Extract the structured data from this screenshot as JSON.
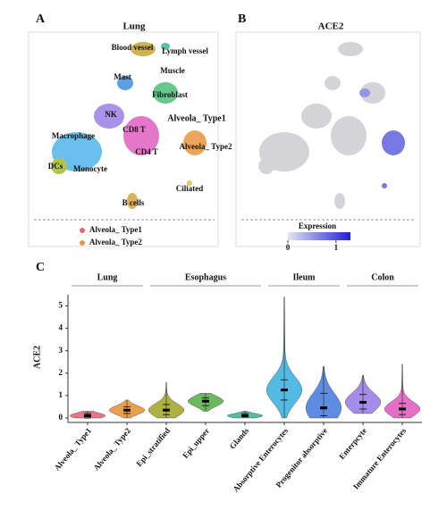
{
  "panel_a": {
    "letter": "A",
    "title": "Lung",
    "clusters": [
      "Blood vessel",
      "Lymph vessel",
      "Muscle",
      "Mast",
      "Fibroblast",
      "NK",
      "CD8 T",
      "Alveola_ Type1",
      "Macrophage",
      "Alveola_ Type2",
      "CD4 T",
      "DCs",
      "Monocyte",
      "Ciliated",
      "B cells"
    ],
    "legend": [
      {
        "name": "Alveola_ Type1",
        "color": "#e8647a"
      },
      {
        "name": "Alveola_ Type2",
        "color": "#e8953c"
      }
    ]
  },
  "panel_b": {
    "letter": "B",
    "title": "ACE2",
    "colorbar": {
      "title": "Expression",
      "lim": [
        0,
        1.3
      ],
      "ticks": [
        0,
        1
      ],
      "colors": [
        "#e4e4f4",
        "#2020d0"
      ]
    }
  },
  "chart_data": {
    "type": "violin",
    "letter": "C",
    "ylabel": "ACE2",
    "ylim": [
      -0.2,
      5.5
    ],
    "yticks": [
      0,
      1,
      2,
      3,
      4,
      5
    ],
    "groups": [
      {
        "name": "Lung",
        "categories": [
          "Alveola_ Type1",
          "Alveola_ Type2"
        ],
        "colors": [
          "#e8647a",
          "#e8953c"
        ],
        "medians": [
          0.1,
          0.35
        ],
        "q1": [
          0.0,
          0.2
        ],
        "q3": [
          0.2,
          0.5
        ],
        "min": [
          0,
          0
        ],
        "max": [
          0.3,
          0.8
        ]
      },
      {
        "name": "Esophagus",
        "categories": [
          "Epi_stratified",
          "Epi_upper",
          "Glands"
        ],
        "colors": [
          "#a6a82e",
          "#5db04a",
          "#3fb59a"
        ],
        "medians": [
          0.35,
          0.75,
          0.1
        ],
        "q1": [
          0.15,
          0.55,
          0.05
        ],
        "q3": [
          0.6,
          0.9,
          0.2
        ],
        "min": [
          0,
          0.3,
          0
        ],
        "max": [
          1.6,
          1.1,
          0.3
        ]
      },
      {
        "name": "Ileum",
        "categories": [
          "Absorptive Enterocytes",
          "Progenitor absorptive"
        ],
        "colors": [
          "#3fb3e0",
          "#4d7fe0"
        ],
        "medians": [
          1.25,
          0.45
        ],
        "q1": [
          0.8,
          0.1
        ],
        "q3": [
          1.7,
          1.1
        ],
        "min": [
          0,
          0
        ],
        "max": [
          5.4,
          2.3
        ]
      },
      {
        "name": "Colon",
        "categories": [
          "Enterpcyte",
          "Immature Enterocytes"
        ],
        "colors": [
          "#9b7fe6",
          "#e060c0"
        ],
        "medians": [
          0.7,
          0.4
        ],
        "q1": [
          0.4,
          0.15
        ],
        "q3": [
          1.05,
          0.65
        ],
        "min": [
          0.2,
          0
        ],
        "max": [
          1.9,
          2.4
        ]
      }
    ]
  }
}
